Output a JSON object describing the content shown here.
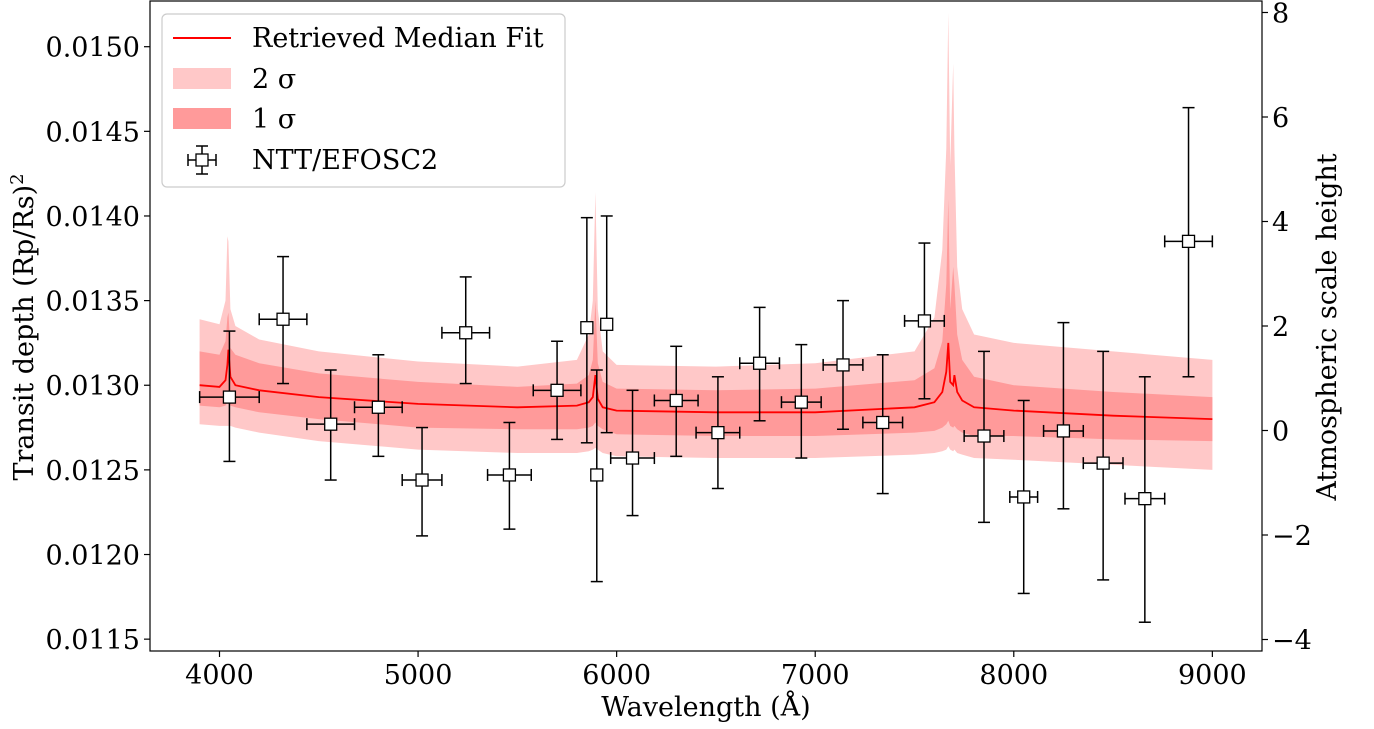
{
  "chart_data": {
    "type": "scatter",
    "xlabel": "Wavelength (Å)",
    "ylabel_left": "Transit depth (Rp/Rs)",
    "ylabel_left_exponent": "2",
    "ylabel_right": "Atmospheric scale height",
    "xlim": [
      3650,
      9250
    ],
    "ylim": [
      0.01143,
      0.01527
    ],
    "ylim_right": [
      -4.22,
      8.22
    ],
    "x_ticks": [
      4000,
      5000,
      6000,
      7000,
      8000,
      9000
    ],
    "x_tick_labels": [
      "4000",
      "5000",
      "6000",
      "7000",
      "8000",
      "9000"
    ],
    "y_ticks": [
      0.0115,
      0.012,
      0.0125,
      0.013,
      0.0135,
      0.014,
      0.0145,
      0.015
    ],
    "y_tick_labels": [
      "0.0115",
      "0.0120",
      "0.0125",
      "0.0130",
      "0.0135",
      "0.0140",
      "0.0145",
      "0.0150"
    ],
    "y_ticks_right": [
      -4,
      -2,
      0,
      2,
      4,
      6,
      8
    ],
    "y_tick_labels_right": [
      "−4",
      "−2",
      "0",
      "2",
      "4",
      "6",
      "8"
    ],
    "grid": false,
    "legend_position": "top-left",
    "legend": [
      {
        "label": "Retrieved Median Fit",
        "kind": "line",
        "color": "#ff0000"
      },
      {
        "label": "2 σ",
        "kind": "band",
        "color": "#ffc8c8"
      },
      {
        "label": "1 σ",
        "kind": "band",
        "color": "#ff9a9a"
      },
      {
        "label": "NTT/EFOSC2",
        "kind": "errorbar-marker",
        "color": "#000000"
      }
    ],
    "model": {
      "x": [
        3900,
        4000,
        4030,
        4040,
        4045,
        4055,
        4080,
        4200,
        4500,
        5000,
        5500,
        5800,
        5860,
        5880,
        5893,
        5905,
        5930,
        6000,
        6500,
        7000,
        7500,
        7600,
        7640,
        7660,
        7670,
        7680,
        7695,
        7701,
        7715,
        7740,
        7800,
        8000,
        8500,
        9000
      ],
      "median": [
        0.013,
        0.01299,
        0.01303,
        0.01312,
        0.01321,
        0.01305,
        0.013,
        0.01297,
        0.01293,
        0.01289,
        0.01287,
        0.01288,
        0.0129,
        0.01293,
        0.01306,
        0.01292,
        0.01287,
        0.01285,
        0.01284,
        0.01284,
        0.01287,
        0.0129,
        0.01296,
        0.01308,
        0.01325,
        0.01302,
        0.013,
        0.01306,
        0.01296,
        0.01291,
        0.01287,
        0.01285,
        0.01282,
        0.0128
      ],
      "sigma1_low": [
        0.01288,
        0.01287,
        0.01288,
        0.0129,
        0.01292,
        0.01288,
        0.01287,
        0.01284,
        0.0128,
        0.01275,
        0.01274,
        0.01274,
        0.01275,
        0.01276,
        0.01278,
        0.01276,
        0.01274,
        0.01271,
        0.0127,
        0.0127,
        0.01272,
        0.01273,
        0.01275,
        0.01277,
        0.01279,
        0.01276,
        0.01275,
        0.01276,
        0.01274,
        0.01272,
        0.0127,
        0.0127,
        0.01268,
        0.01267
      ],
      "sigma1_high": [
        0.0132,
        0.01318,
        0.01326,
        0.0134,
        0.01343,
        0.01322,
        0.01318,
        0.01313,
        0.01307,
        0.01302,
        0.01299,
        0.01301,
        0.01306,
        0.01315,
        0.0135,
        0.01313,
        0.01302,
        0.01298,
        0.01297,
        0.01298,
        0.01303,
        0.0131,
        0.01326,
        0.0136,
        0.0141,
        0.01345,
        0.0137,
        0.0136,
        0.0133,
        0.01315,
        0.01305,
        0.013,
        0.01296,
        0.01293
      ],
      "sigma2_low": [
        0.01277,
        0.01276,
        0.01276,
        0.01276,
        0.01276,
        0.01276,
        0.01275,
        0.01272,
        0.01267,
        0.01262,
        0.0126,
        0.0126,
        0.01261,
        0.01262,
        0.01263,
        0.01262,
        0.0126,
        0.01258,
        0.01257,
        0.01257,
        0.01259,
        0.0126,
        0.01261,
        0.01262,
        0.01264,
        0.01262,
        0.01261,
        0.01262,
        0.0126,
        0.01259,
        0.01257,
        0.01256,
        0.01253,
        0.0125
      ],
      "sigma2_high": [
        0.01339,
        0.01336,
        0.0135,
        0.01388,
        0.01385,
        0.01345,
        0.01335,
        0.01327,
        0.0132,
        0.01314,
        0.01311,
        0.01315,
        0.0133,
        0.0135,
        0.01414,
        0.01345,
        0.0132,
        0.01312,
        0.01311,
        0.01313,
        0.0132,
        0.0134,
        0.0138,
        0.0144,
        0.0152,
        0.0143,
        0.0149,
        0.0144,
        0.0137,
        0.01345,
        0.0133,
        0.01325,
        0.0132,
        0.01315
      ]
    },
    "observations": {
      "x": [
        4050,
        4320,
        4560,
        4800,
        5020,
        5240,
        5460,
        5700,
        5850,
        5900,
        5950,
        6080,
        6300,
        6510,
        6720,
        6930,
        7140,
        7340,
        7550,
        7850,
        8050,
        8250,
        8450,
        8660,
        8880
      ],
      "x_err": [
        150,
        120,
        120,
        120,
        100,
        120,
        110,
        120,
        0,
        0,
        0,
        110,
        110,
        110,
        100,
        100,
        100,
        100,
        100,
        100,
        70,
        100,
        100,
        100,
        120
      ],
      "y": [
        0.01293,
        0.01339,
        0.01277,
        0.01287,
        0.01244,
        0.01331,
        0.01247,
        0.01297,
        0.01334,
        0.01247,
        0.01336,
        0.01257,
        0.01291,
        0.01272,
        0.01313,
        0.0129,
        0.01312,
        0.01278,
        0.01338,
        0.0127,
        0.01234,
        0.01273,
        0.01254,
        0.01233,
        0.01385
      ],
      "y_err_low": [
        0.00038,
        0.00038,
        0.00033,
        0.00029,
        0.00033,
        0.0003,
        0.00032,
        0.00029,
        0.00068,
        0.00063,
        0.00064,
        0.00034,
        0.00033,
        0.00033,
        0.00034,
        0.00033,
        0.00038,
        0.00042,
        0.00046,
        0.00051,
        0.00057,
        0.00046,
        0.00069,
        0.00073,
        0.0008
      ],
      "y_err_high": [
        0.00039,
        0.00037,
        0.00032,
        0.00031,
        0.00031,
        0.00033,
        0.00031,
        0.00029,
        0.00065,
        0.00062,
        0.00064,
        0.0004,
        0.00032,
        0.00033,
        0.00033,
        0.00034,
        0.00038,
        0.0004,
        0.00046,
        0.0005,
        0.00057,
        0.00064,
        0.00066,
        0.00072,
        0.00079
      ]
    }
  }
}
